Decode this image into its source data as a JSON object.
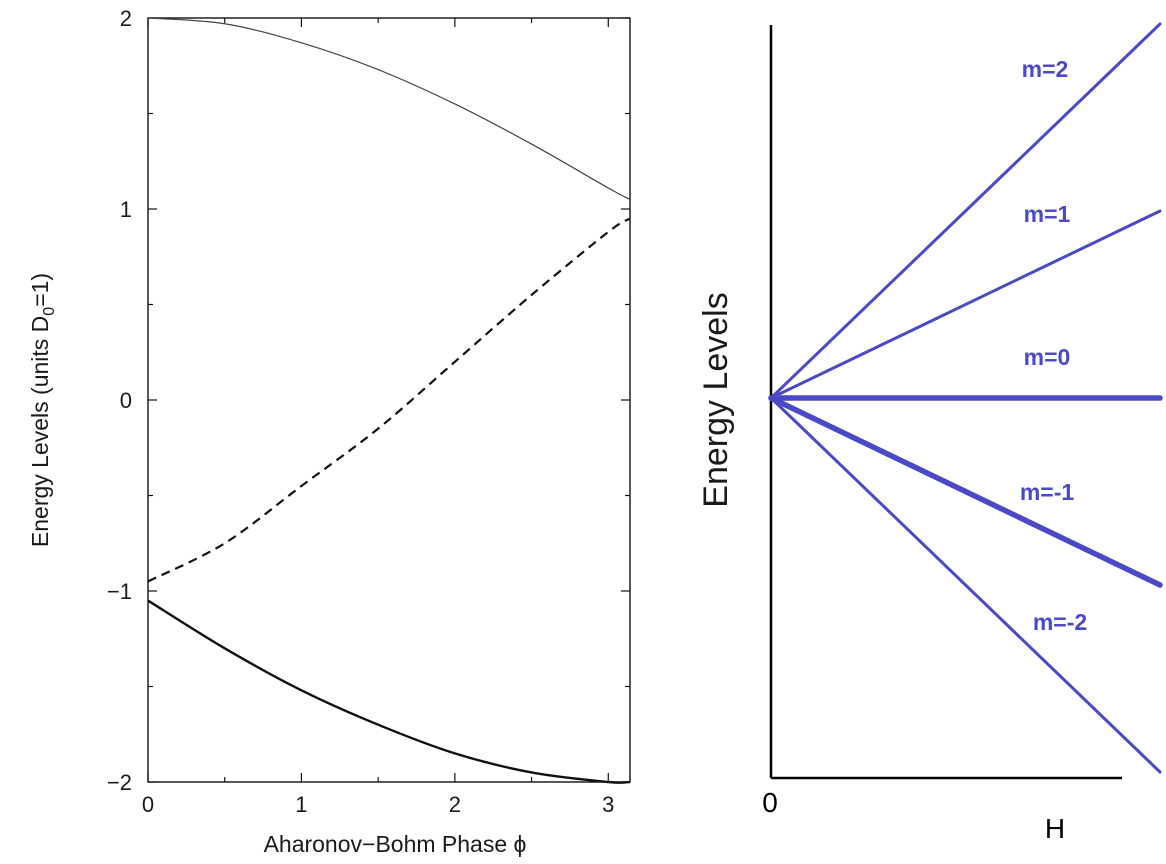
{
  "chart_data": [
    {
      "type": "line",
      "xlabel": "Aharonov−Bohm Phase ϕ",
      "ylabel": "Energy Levels (units D",
      "ylabel_sub": "0",
      "ylabel_tail": "=1)",
      "xlim": [
        0,
        3.1416
      ],
      "ylim": [
        -2,
        2
      ],
      "x_ticks": [
        0,
        1,
        2,
        3
      ],
      "x_tick_labels": [
        "0",
        "1",
        "2",
        "3"
      ],
      "y_ticks": [
        2,
        1,
        0,
        -1,
        -2
      ],
      "y_tick_labels": [
        "2",
        "1",
        "0",
        "−1",
        "−2"
      ],
      "grid": false,
      "series": [
        {
          "style": "solid-thin",
          "color": "#444444",
          "x": [
            0,
            0.5,
            1.0,
            1.5,
            2.0,
            2.5,
            3.0,
            3.1416
          ],
          "y": [
            2.0,
            1.97,
            1.87,
            1.73,
            1.55,
            1.34,
            1.11,
            1.05
          ]
        },
        {
          "style": "dashed",
          "color": "#111111",
          "x": [
            0,
            0.5,
            1.0,
            1.5,
            2.0,
            2.5,
            3.0,
            3.1416
          ],
          "y": [
            -0.95,
            -0.75,
            -0.45,
            -0.15,
            0.2,
            0.55,
            0.88,
            0.95
          ]
        },
        {
          "style": "solid-thick",
          "color": "#111111",
          "x": [
            0,
            0.5,
            1.0,
            1.5,
            2.0,
            2.5,
            3.0,
            3.1416
          ],
          "y": [
            -1.05,
            -1.3,
            -1.52,
            -1.7,
            -1.85,
            -1.95,
            -2.0,
            -2.0
          ]
        }
      ]
    },
    {
      "type": "line",
      "xlabel": "H",
      "ylabel": "Energy Levels",
      "origin_label": "0",
      "x": [
        0,
        1
      ],
      "line_color": "#4a4ac8",
      "series": [
        {
          "name": "m=2",
          "y": [
            0,
            2
          ],
          "bold_label": false,
          "thick": false
        },
        {
          "name": "m=1",
          "y": [
            0,
            1
          ],
          "bold_label": false,
          "thick": false
        },
        {
          "name": "m=0",
          "y": [
            0,
            0
          ],
          "bold_label": true,
          "thick": true
        },
        {
          "name": "m=-1",
          "y": [
            0,
            -1
          ],
          "bold_label": true,
          "thick": true
        },
        {
          "name": "m=-2",
          "y": [
            0,
            -2
          ],
          "bold_label": true,
          "thick": false
        }
      ]
    }
  ]
}
